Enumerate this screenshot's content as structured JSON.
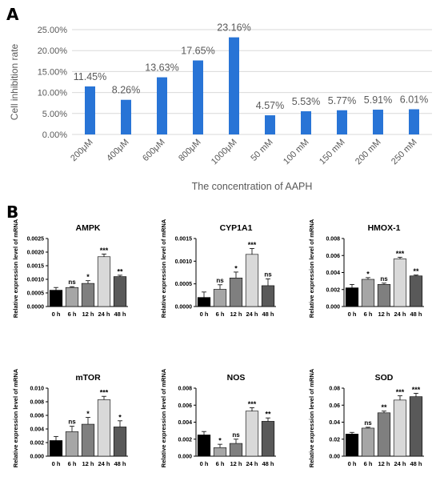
{
  "panels": {
    "a": "A",
    "b": "B"
  },
  "colors": {
    "bar_a": "#2874d6",
    "text_a": "#595959",
    "grid_a": "#d9d9d9",
    "panel_letter": "#1a1aa8",
    "time_fills": [
      "#000000",
      "#a6a6a6",
      "#7f7f7f",
      "#d9d9d9",
      "#595959"
    ]
  },
  "chart_data": [
    {
      "type": "bar",
      "title": "",
      "xlabel": "The concentration of AAPH",
      "ylabel": "Cell inhibition rate",
      "ylim": [
        0,
        25
      ],
      "yticks": [
        "0.00%",
        "5.00%",
        "10.00%",
        "15.00%",
        "20.00%",
        "25.00%"
      ],
      "categories": [
        "200μM",
        "400μM",
        "600μM",
        "800μM",
        "1000μM",
        "50 mM",
        "100 mM",
        "150 mM",
        "200 mM",
        "250 mM"
      ],
      "values": [
        11.45,
        8.26,
        13.63,
        17.65,
        23.16,
        4.57,
        5.53,
        5.77,
        5.91,
        6.01
      ],
      "data_labels": [
        "11.45%",
        "8.26%",
        "13.63%",
        "17.65%",
        "23.16%",
        "4.57%",
        "5.53%",
        "5.77%",
        "5.91%",
        "6.01%"
      ],
      "grid": true,
      "legend": "none"
    },
    {
      "type": "bar",
      "title": "AMPK",
      "ylabel": "Relative expression level of mRNA",
      "ylim": [
        0,
        0.0025
      ],
      "yticks": [
        "0.0000",
        "0.0005",
        "0.0010",
        "0.0015",
        "0.0020",
        "0.0025"
      ],
      "categories": [
        "0 h",
        "6 h",
        "12 h",
        "24 h",
        "48 h"
      ],
      "values": [
        0.0006,
        0.0007,
        0.00085,
        0.00183,
        0.0011
      ],
      "errors": [
        0.0001,
        3e-05,
        0.0001,
        0.0001,
        5e-05
      ],
      "significance": [
        "",
        "ns",
        "*",
        "***",
        "**"
      ]
    },
    {
      "type": "bar",
      "title": "CYP1A1",
      "ylabel": "Relative expression level of mRNA",
      "ylim": [
        0,
        0.0015
      ],
      "yticks": [
        "0.0000",
        "0.0005",
        "0.0010",
        "0.0015"
      ],
      "categories": [
        "0 h",
        "6 h",
        "12 h",
        "24 h",
        "48 h"
      ],
      "values": [
        0.0002,
        0.00038,
        0.00063,
        0.00115,
        0.00046
      ],
      "errors": [
        0.00012,
        0.0001,
        0.00013,
        0.00013,
        0.00015
      ],
      "significance": [
        "",
        "ns",
        "*",
        "***",
        "ns"
      ]
    },
    {
      "type": "bar",
      "title": "HMOX-1",
      "ylabel": "Relative expression level of mRNA",
      "ylim": [
        0,
        0.008
      ],
      "yticks": [
        "0.000",
        "0.002",
        "0.004",
        "0.006",
        "0.008"
      ],
      "categories": [
        "0 h",
        "6 h",
        "12 h",
        "24 h",
        "48 h"
      ],
      "values": [
        0.0022,
        0.0032,
        0.0026,
        0.0056,
        0.0036
      ],
      "errors": [
        0.0004,
        0.0002,
        0.00015,
        0.0002,
        0.0001
      ],
      "significance": [
        "",
        "*",
        "ns",
        "***",
        "**"
      ]
    },
    {
      "type": "bar",
      "title": "mTOR",
      "ylabel": "Relative expression level of mRNA",
      "ylim": [
        0,
        0.01
      ],
      "yticks": [
        "0.000",
        "0.002",
        "0.004",
        "0.006",
        "0.008",
        "0.010"
      ],
      "categories": [
        "0 h",
        "6 h",
        "12 h",
        "24 h",
        "48 h"
      ],
      "values": [
        0.0023,
        0.0036,
        0.0047,
        0.0083,
        0.0043
      ],
      "errors": [
        0.0006,
        0.0008,
        0.001,
        0.0005,
        0.0009
      ],
      "significance": [
        "",
        "ns",
        "*",
        "***",
        "*"
      ]
    },
    {
      "type": "bar",
      "title": "NOS",
      "ylabel": "Relative expression level of mRNA",
      "ylim": [
        0,
        0.008
      ],
      "yticks": [
        "0.000",
        "0.002",
        "0.004",
        "0.006",
        "0.008"
      ],
      "categories": [
        "0 h",
        "6 h",
        "12 h",
        "24 h",
        "48 h"
      ],
      "values": [
        0.0025,
        0.001,
        0.0015,
        0.0053,
        0.0041
      ],
      "errors": [
        0.0004,
        0.0004,
        0.0005,
        0.0004,
        0.0004
      ],
      "significance": [
        "",
        "*",
        "ns",
        "***",
        "**"
      ]
    },
    {
      "type": "bar",
      "title": "SOD",
      "ylabel": "Relative expression level of mRNA",
      "ylim": [
        0,
        0.08
      ],
      "yticks": [
        "0.00",
        "0.02",
        "0.04",
        "0.06",
        "0.08"
      ],
      "categories": [
        "0 h",
        "6 h",
        "12 h",
        "24 h",
        "48 h"
      ],
      "values": [
        0.026,
        0.033,
        0.051,
        0.066,
        0.07
      ],
      "errors": [
        0.002,
        0.001,
        0.002,
        0.005,
        0.004
      ],
      "significance": [
        "",
        "ns",
        "**",
        "***",
        "***"
      ]
    }
  ]
}
